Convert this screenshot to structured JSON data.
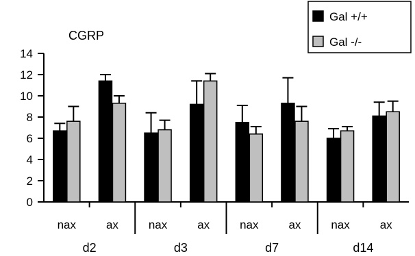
{
  "chart_data": {
    "type": "bar",
    "title": "CGRP",
    "xlabel": "",
    "ylabel": "",
    "ylim": [
      0,
      14
    ],
    "yticks": [
      0,
      2,
      4,
      6,
      8,
      10,
      12,
      14
    ],
    "grid": false,
    "legend_position": "top-right",
    "groups": [
      "d2",
      "d3",
      "d7",
      "d14"
    ],
    "categories": [
      "nax",
      "ax",
      "nax",
      "ax",
      "nax",
      "ax",
      "nax",
      "ax"
    ],
    "series": [
      {
        "name": "Gal +/+",
        "color": "#000000",
        "values": [
          6.7,
          11.4,
          6.5,
          9.2,
          7.5,
          9.3,
          6.0,
          8.1
        ],
        "error_upper": [
          7.4,
          12.0,
          8.4,
          11.4,
          9.1,
          11.7,
          6.9,
          9.4
        ]
      },
      {
        "name": "Gal -/-",
        "color": "#bfbfbf",
        "values": [
          7.6,
          9.3,
          6.8,
          11.4,
          6.4,
          7.6,
          6.7,
          8.5
        ],
        "error_upper": [
          9.0,
          10.0,
          7.7,
          12.1,
          7.1,
          9.0,
          7.1,
          9.5
        ]
      }
    ]
  }
}
